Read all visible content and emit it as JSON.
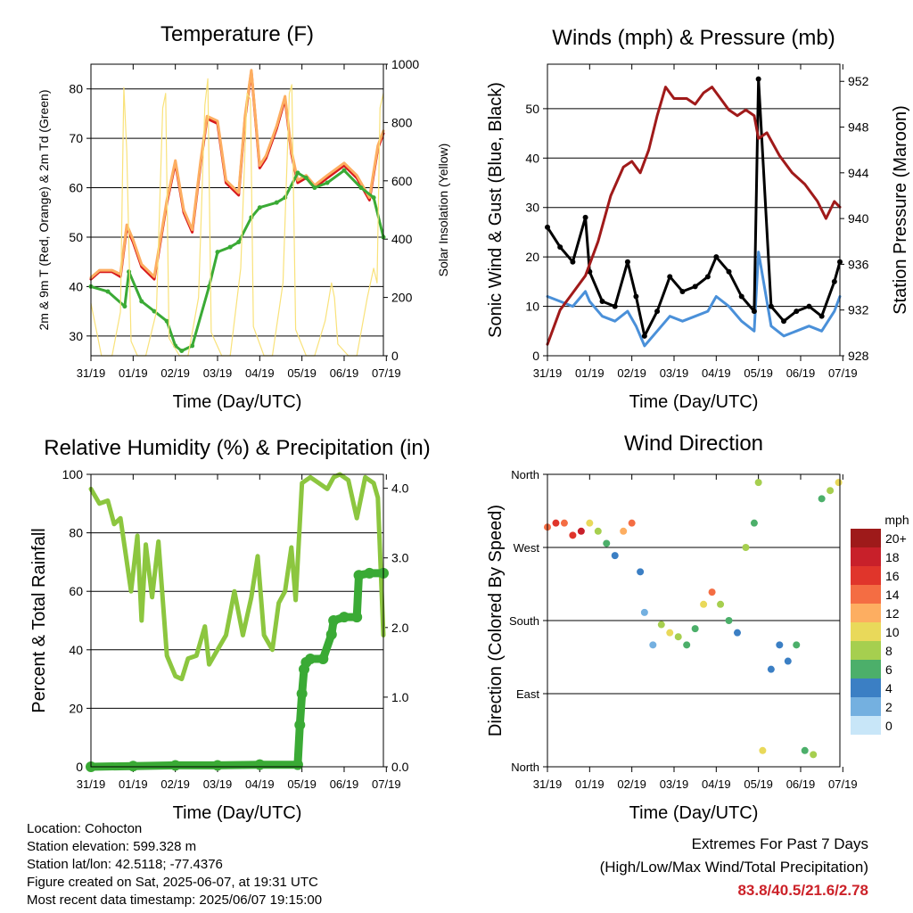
{
  "chart_data": [
    {
      "type": "line",
      "title": "Temperature (F)",
      "xlabel": "Time (Day/UTC)",
      "ylabel": "2m & 9m T (Red, Orange) & 2m Td (Green)",
      "ylabel_right": "Solar Insolation (Yellow)",
      "ylim": [
        26,
        85
      ],
      "ylim_right": [
        0,
        1000
      ],
      "yticks": [
        30,
        40,
        50,
        60,
        70,
        80
      ],
      "yticks_right": [
        0,
        200,
        400,
        600,
        800,
        1000
      ],
      "x_tick_labels": [
        "31/19",
        "01/19",
        "02/19",
        "03/19",
        "04/19",
        "05/19",
        "06/19",
        "07/19"
      ],
      "grid": true,
      "series": [
        {
          "name": "2m T",
          "color": "#d7191c",
          "axis": "left",
          "x": [
            0.0,
            0.2,
            0.5,
            0.7,
            0.85,
            1.0,
            1.2,
            1.5,
            1.8,
            2.0,
            2.2,
            2.4,
            2.6,
            2.75,
            3.0,
            3.2,
            3.5,
            3.65,
            3.8,
            4.0,
            4.15,
            4.4,
            4.6,
            4.75,
            4.9,
            5.1,
            5.3,
            5.6,
            6.0,
            6.3,
            6.6,
            6.8,
            6.93
          ],
          "y": [
            41.5,
            43,
            43,
            42,
            52,
            49,
            44,
            41.5,
            57,
            65,
            55,
            51,
            65,
            74,
            73,
            61,
            58.5,
            74,
            83.5,
            64,
            66,
            72,
            78,
            67,
            61,
            62,
            60,
            62,
            64.5,
            62,
            57.5,
            68,
            71
          ]
        },
        {
          "name": "9m T",
          "color": "#fdae61",
          "axis": "left",
          "x": [
            0.0,
            0.2,
            0.5,
            0.7,
            0.85,
            1.0,
            1.2,
            1.5,
            1.8,
            2.0,
            2.2,
            2.4,
            2.6,
            2.75,
            3.0,
            3.2,
            3.5,
            3.65,
            3.8,
            4.0,
            4.15,
            4.4,
            4.6,
            4.75,
            4.9,
            5.1,
            5.3,
            5.6,
            6.0,
            6.3,
            6.6,
            6.8,
            6.93
          ],
          "y": [
            41.8,
            43.3,
            43.3,
            42.5,
            52.5,
            49.5,
            44.5,
            42,
            57.5,
            65.5,
            55.5,
            51.5,
            65.5,
            74.5,
            73.5,
            61.5,
            59,
            74.5,
            83.8,
            64.5,
            66.5,
            72.5,
            78.5,
            67.5,
            61.5,
            62.5,
            60.5,
            62.5,
            65,
            62.5,
            58,
            68.5,
            71.5
          ]
        },
        {
          "name": "2m Td",
          "color": "#3aaa35",
          "axis": "left",
          "x": [
            0.0,
            0.4,
            0.8,
            0.9,
            1.2,
            1.5,
            1.8,
            2.0,
            2.15,
            2.4,
            2.8,
            3.0,
            3.3,
            3.5,
            3.8,
            4.0,
            4.4,
            4.6,
            4.9,
            5.1,
            5.3,
            5.6,
            6.0,
            6.4,
            6.7,
            6.93
          ],
          "y": [
            40,
            39,
            36,
            43,
            37,
            35,
            33,
            28,
            27,
            28,
            40,
            47,
            48,
            49,
            54,
            56,
            57,
            58,
            63,
            62,
            60,
            61,
            63.5,
            60,
            58,
            50
          ]
        },
        {
          "name": "Solar Insolation",
          "color": "#f9e27a",
          "axis": "right",
          "x": [
            0.0,
            0.25,
            0.5,
            0.7,
            0.78,
            0.85,
            0.95,
            1.1,
            1.3,
            1.55,
            1.7,
            1.77,
            1.85,
            2.1,
            2.3,
            2.55,
            2.7,
            2.77,
            2.85,
            3.1,
            3.3,
            3.55,
            3.7,
            3.78,
            3.85,
            4.1,
            4.3,
            4.55,
            4.7,
            4.76,
            4.85,
            5.1,
            5.3,
            5.55,
            5.7,
            5.77,
            5.85,
            6.1,
            6.3,
            6.55,
            6.7,
            6.78,
            6.85,
            6.93
          ],
          "y": [
            180,
            0,
            0,
            150,
            920,
            700,
            50,
            0,
            0,
            150,
            850,
            900,
            60,
            0,
            0,
            200,
            860,
            950,
            80,
            0,
            0,
            300,
            900,
            880,
            100,
            0,
            0,
            250,
            900,
            930,
            90,
            0,
            0,
            120,
            250,
            200,
            40,
            0,
            0,
            200,
            300,
            250,
            850,
            900
          ]
        }
      ]
    },
    {
      "type": "line",
      "title": "Winds (mph) & Pressure (mb)",
      "xlabel": "Time (Day/UTC)",
      "ylabel": "Sonic Wind & Gust (Blue, Black)",
      "ylabel_right": "Station Pressure (Maroon)",
      "ylim": [
        0,
        59
      ],
      "ylim_right": [
        928,
        953.5
      ],
      "yticks": [
        0,
        10,
        20,
        30,
        40,
        50
      ],
      "yticks_right": [
        928,
        932,
        936,
        940,
        944,
        948,
        952
      ],
      "x_tick_labels": [
        "31/19",
        "01/19",
        "02/19",
        "03/19",
        "04/19",
        "05/19",
        "06/19",
        "07/19"
      ],
      "grid": true,
      "series": [
        {
          "name": "Sonic Wind",
          "color": "#4a90d9",
          "axis": "left",
          "x": [
            0.0,
            0.3,
            0.6,
            0.9,
            1.0,
            1.3,
            1.6,
            1.9,
            2.1,
            2.3,
            2.6,
            2.9,
            3.2,
            3.5,
            3.8,
            4.0,
            4.3,
            4.6,
            4.9,
            5.0,
            5.3,
            5.6,
            5.9,
            6.2,
            6.5,
            6.8,
            6.93
          ],
          "y": [
            12,
            11,
            10,
            13,
            11,
            8,
            7,
            9,
            6,
            2,
            5,
            8,
            7,
            8,
            9,
            12,
            10,
            7,
            5,
            21,
            6,
            4,
            5,
            6,
            5,
            9,
            12
          ]
        },
        {
          "name": "Gust",
          "color": "#000000",
          "axis": "left",
          "x": [
            0.0,
            0.3,
            0.6,
            0.9,
            1.0,
            1.3,
            1.6,
            1.9,
            2.1,
            2.3,
            2.6,
            2.9,
            3.2,
            3.5,
            3.8,
            4.0,
            4.3,
            4.6,
            4.9,
            5.0,
            5.3,
            5.6,
            5.9,
            6.2,
            6.5,
            6.8,
            6.93
          ],
          "y": [
            26,
            22,
            19,
            28,
            17,
            11,
            10,
            19,
            12,
            4,
            9,
            16,
            13,
            14,
            16,
            20,
            17,
            12,
            9,
            56,
            10,
            7,
            9,
            10,
            8,
            15,
            19
          ]
        },
        {
          "name": "Station Pressure",
          "color": "#a01a1a",
          "axis": "right",
          "x": [
            0.0,
            0.3,
            0.6,
            0.9,
            1.2,
            1.5,
            1.8,
            2.0,
            2.2,
            2.4,
            2.6,
            2.8,
            3.0,
            3.3,
            3.5,
            3.7,
            3.9,
            4.1,
            4.3,
            4.5,
            4.7,
            4.9,
            5.0,
            5.2,
            5.5,
            5.8,
            6.1,
            6.4,
            6.6,
            6.8,
            6.93
          ],
          "y": [
            929,
            932,
            933.5,
            935,
            938,
            942,
            944.5,
            945,
            944,
            946,
            949,
            951.5,
            950.5,
            950.5,
            950,
            951,
            951.5,
            950.5,
            949.5,
            949,
            949.5,
            949,
            947,
            947.5,
            945.5,
            944,
            943,
            941.5,
            940,
            941.5,
            941
          ]
        }
      ]
    },
    {
      "type": "line",
      "title": "Relative Humidity (%) & Precipitation (in)",
      "xlabel": "Time (Day/UTC)",
      "ylabel": "Percent & Total Rainfall",
      "ylim": [
        0,
        100
      ],
      "ylim_right": [
        0,
        4.2
      ],
      "yticks": [
        0,
        20,
        40,
        60,
        80,
        100
      ],
      "yticks_right": [
        0.0,
        1.0,
        2.0,
        3.0,
        4.0
      ],
      "x_tick_labels": [
        "31/19",
        "01/19",
        "02/19",
        "03/19",
        "04/19",
        "05/19",
        "06/19",
        "07/19"
      ],
      "grid": true,
      "series": [
        {
          "name": "Relative Humidity",
          "color": "#8cc63f",
          "axis": "left",
          "x": [
            0.0,
            0.2,
            0.4,
            0.55,
            0.7,
            0.8,
            0.95,
            1.1,
            1.2,
            1.3,
            1.45,
            1.6,
            1.8,
            2.0,
            2.15,
            2.3,
            2.5,
            2.7,
            2.8,
            3.0,
            3.2,
            3.4,
            3.6,
            3.8,
            3.95,
            4.1,
            4.3,
            4.45,
            4.6,
            4.75,
            4.85,
            5.0,
            5.2,
            5.4,
            5.6,
            5.75,
            5.9,
            6.1,
            6.3,
            6.5,
            6.7,
            6.8,
            6.93
          ],
          "y": [
            95,
            90,
            91,
            83,
            85,
            75,
            60,
            79,
            50,
            76,
            58,
            77,
            38,
            31,
            30,
            37,
            38,
            48,
            35,
            40,
            45,
            60,
            45,
            58,
            72,
            45,
            40,
            56,
            60,
            75,
            57,
            97,
            99,
            97,
            95,
            99,
            100,
            98,
            85,
            99,
            97,
            92,
            45
          ]
        },
        {
          "name": "Total Rainfall",
          "color": "#3aaa35",
          "axis": "right",
          "x": [
            0.0,
            1.0,
            2.0,
            3.0,
            4.0,
            4.9,
            4.95,
            5.0,
            5.05,
            5.1,
            5.2,
            5.5,
            5.7,
            5.75,
            6.0,
            6.3,
            6.35,
            6.6,
            6.93
          ],
          "y": [
            0.0,
            0.01,
            0.02,
            0.02,
            0.03,
            0.03,
            0.6,
            1.05,
            1.4,
            1.5,
            1.55,
            1.55,
            1.9,
            2.1,
            2.15,
            2.15,
            2.75,
            2.78,
            2.78
          ]
        }
      ]
    },
    {
      "type": "scatter",
      "title": "Wind Direction",
      "xlabel": "Time (Day/UTC)",
      "ylabel": "Direction (Colored By Speed)",
      "ylim": [
        0,
        360
      ],
      "yticks": [
        0,
        90,
        180,
        270,
        360
      ],
      "ytick_labels": [
        "North",
        "East",
        "South",
        "West",
        "North"
      ],
      "x_tick_labels": [
        "31/19",
        "01/19",
        "02/19",
        "03/19",
        "04/19",
        "05/19",
        "06/19",
        "07/19"
      ],
      "grid": true,
      "legend": {
        "title": "mph",
        "position": "right",
        "labels": [
          "20+",
          "18",
          "16",
          "14",
          "12",
          "10",
          "8",
          "6",
          "4",
          "2",
          "0"
        ],
        "colors": [
          "#9e1a1a",
          "#c8202a",
          "#e0352b",
          "#f46d43",
          "#fdae61",
          "#e9d95a",
          "#a6cf4f",
          "#4caf6a",
          "#3b7fc4",
          "#74b0e0",
          "#c8e6f8"
        ]
      },
      "series": [
        {
          "name": "wind direction",
          "x": [
            0.0,
            0.2,
            0.4,
            0.6,
            0.8,
            1.0,
            1.2,
            1.4,
            1.6,
            1.8,
            2.0,
            2.2,
            2.3,
            2.5,
            2.7,
            2.9,
            3.1,
            3.3,
            3.5,
            3.7,
            3.9,
            4.1,
            4.3,
            4.5,
            4.7,
            4.9,
            5.0,
            5.1,
            5.3,
            5.5,
            5.7,
            5.9,
            6.1,
            6.3,
            6.5,
            6.7,
            6.9
          ],
          "y": [
            295,
            300,
            300,
            285,
            290,
            300,
            290,
            275,
            260,
            290,
            300,
            240,
            190,
            150,
            175,
            165,
            160,
            150,
            170,
            200,
            215,
            200,
            180,
            165,
            270,
            300,
            350,
            20,
            120,
            150,
            130,
            150,
            20,
            15,
            330,
            340,
            350
          ],
          "speed": [
            14,
            15,
            14,
            16,
            18,
            10,
            8,
            5,
            3,
            12,
            14,
            3,
            2,
            2,
            8,
            10,
            7,
            6,
            5,
            10,
            13,
            8,
            5,
            3,
            8,
            6,
            8,
            10,
            4,
            3,
            4,
            5,
            6,
            7,
            5,
            8,
            10
          ]
        }
      ]
    }
  ],
  "info": {
    "location": "Location: Cohocton",
    "elevation": "Station elevation: 599.328 m",
    "latlon": "Station lat/lon: 42.5118; -77.4376",
    "created": "Figure created on Sat, 2025-06-07, at 19:31 UTC",
    "recent": "Most recent data timestamp: 2025/06/07 19:15:00"
  },
  "extremes": {
    "title": "Extremes For Past 7 Days",
    "subtitle": "(High/Low/Max Wind/Total Precipitation)",
    "values": "83.8/40.5/21.6/2.78"
  }
}
